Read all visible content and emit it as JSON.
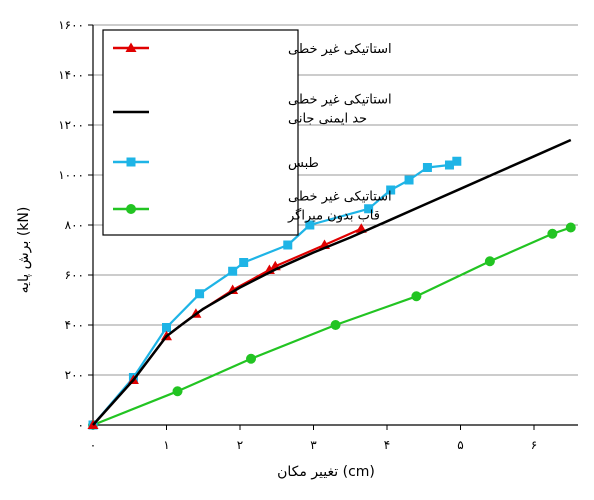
{
  "chart_data": {
    "type": "line",
    "xlabel": "تغییر مکان (cm)",
    "ylabel": "برش پایه (kN)",
    "xlim": [
      0,
      6.5
    ],
    "ylim": [
      0,
      1600
    ],
    "grid": "horizontal",
    "legend_position": "top-left",
    "x_ticks": [
      0,
      1,
      2,
      3,
      4,
      5,
      6
    ],
    "x_tick_labels": [
      "۰",
      "۱",
      "۲",
      "۳",
      "۴",
      "۵",
      "۶"
    ],
    "y_ticks": [
      0,
      200,
      400,
      600,
      800,
      1000,
      1200,
      1400,
      1600
    ],
    "y_tick_labels": [
      "۰",
      "۲۰۰",
      "۴۰۰",
      "۶۰۰",
      "۸۰۰",
      "۱۰۰۰",
      "۱۲۰۰",
      "۱۴۰۰",
      "۱۶۰۰"
    ],
    "series": [
      {
        "name": "استاتیکی غیر خطی",
        "color": "#e00000",
        "marker": "triangle",
        "line": true,
        "x": [
          0,
          0.55,
          1.0,
          1.4,
          1.9,
          2.4,
          2.48,
          3.15,
          3.65
        ],
        "y": [
          0,
          180,
          355,
          445,
          540,
          620,
          635,
          720,
          785
        ]
      },
      {
        "name": "استاتیکی غیر خطی حد ایمنی جانی",
        "color": "#000000",
        "marker": "none",
        "line": true,
        "x": [
          0,
          0.55,
          1.0,
          1.2,
          1.5,
          2.0,
          2.5,
          3.0,
          3.5,
          4.0,
          4.5,
          5.0,
          5.5,
          6.0,
          6.5
        ],
        "y": [
          0,
          180,
          355,
          400,
          465,
          550,
          625,
          690,
          750,
          815,
          880,
          945,
          1010,
          1075,
          1140
        ]
      },
      {
        "name": "طبس",
        "color": "#1eb4e6",
        "marker": "square",
        "line": true,
        "x": [
          0,
          0.55,
          1.0,
          1.45,
          1.9,
          2.05,
          2.65,
          2.95,
          3.75,
          4.05,
          4.3,
          4.55,
          4.85,
          4.95
        ],
        "y": [
          0,
          190,
          390,
          525,
          615,
          650,
          720,
          800,
          865,
          940,
          980,
          1030,
          1040,
          1055
        ]
      },
      {
        "name": "استاتیکی غیر خطی قاب بدون میراگر",
        "color": "#22c422",
        "marker": "circle",
        "line": true,
        "x": [
          0,
          1.15,
          2.15,
          3.3,
          4.4,
          5.4,
          6.25,
          6.5
        ],
        "y": [
          0,
          135,
          265,
          400,
          515,
          655,
          765,
          790
        ]
      }
    ]
  },
  "legend": {
    "items": [
      {
        "lines": [
          "استاتیکی غیر خطی"
        ],
        "color": "#e00000",
        "marker": "triangle"
      },
      {
        "lines": [
          "استاتیکی غیر خطی",
          "حد ایمنی جانی"
        ],
        "color": "#000000",
        "marker": "none"
      },
      {
        "lines": [
          "طبس"
        ],
        "color": "#1eb4e6",
        "marker": "square"
      },
      {
        "lines": [
          "استاتیکی غیر خطی",
          "قاب بدون میراگر"
        ],
        "color": "#22c422",
        "marker": "circle"
      }
    ]
  }
}
